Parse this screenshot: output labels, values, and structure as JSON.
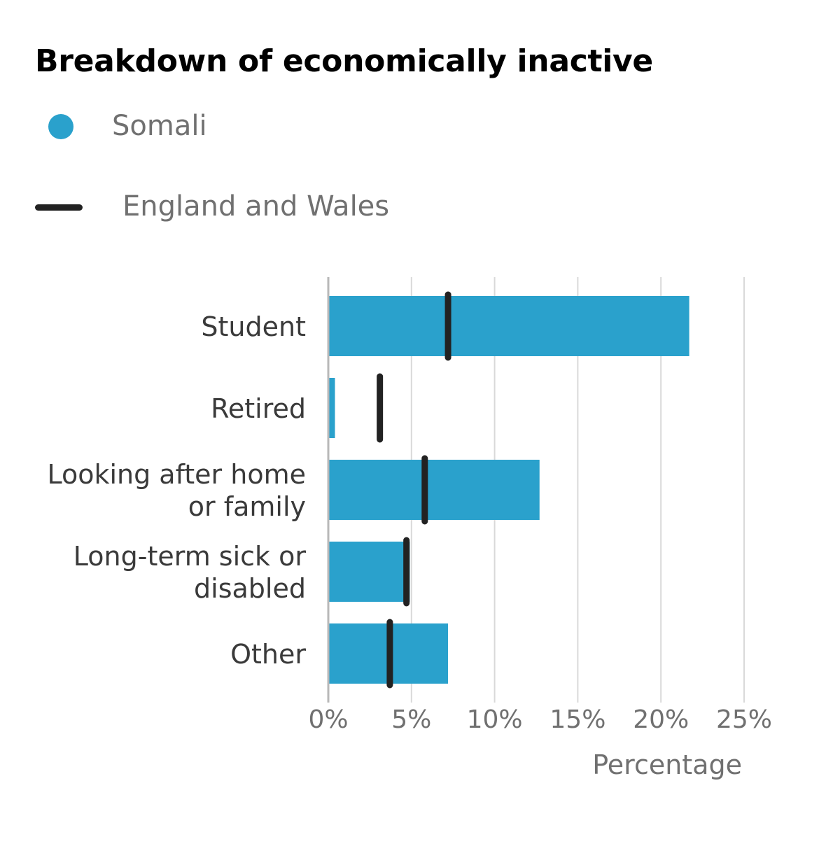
{
  "chart_data": {
    "type": "bar",
    "orientation": "horizontal",
    "title": "Breakdown of economically inactive",
    "xlabel": "Percentage",
    "ylabel": "",
    "xlim": [
      0,
      25
    ],
    "x_ticks": [
      "0%",
      "5%",
      "10%",
      "15%",
      "20%",
      "25%"
    ],
    "categories": [
      [
        "Student"
      ],
      [
        "Retired"
      ],
      [
        "Looking after home",
        "or family"
      ],
      [
        "Long-term sick or",
        "disabled"
      ],
      [
        "Other"
      ]
    ],
    "series": [
      {
        "name": "Somali",
        "type": "bar",
        "color": "#2aa1cc",
        "values": [
          21.7,
          0.4,
          12.7,
          4.9,
          7.2
        ]
      },
      {
        "name": "England and Wales",
        "type": "marker-line",
        "color": "#222222",
        "values": [
          7.2,
          3.1,
          5.8,
          4.7,
          3.7
        ]
      }
    ],
    "grid": true,
    "legend_position": "top-left"
  }
}
